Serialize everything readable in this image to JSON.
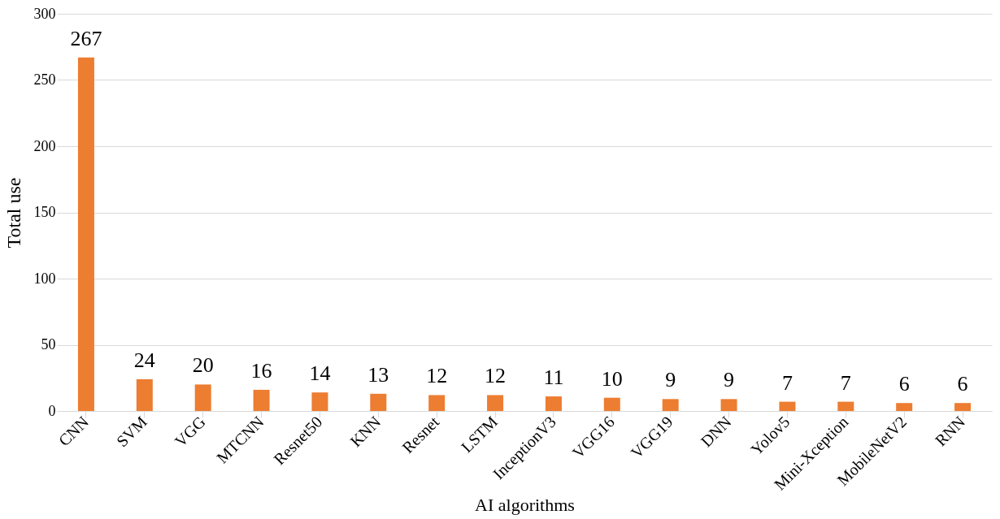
{
  "chart_data": {
    "type": "bar",
    "xlabel": "AI algorithms",
    "ylabel": "Total use",
    "categories": [
      "CNN",
      "SVM",
      "VGG",
      "MTCNN",
      "Resnet50",
      "KNN",
      "Resnet",
      "LSTM",
      "InceptionV3",
      "VGG16",
      "VGG19",
      "DNN",
      "Yolov5",
      "Mini-Xception",
      "MobileNetV2",
      "RNN"
    ],
    "values": [
      267,
      24,
      20,
      16,
      14,
      13,
      12,
      12,
      11,
      10,
      9,
      9,
      7,
      7,
      6,
      6
    ],
    "color": "#ed7d31",
    "ylim": [
      0,
      300
    ],
    "yticks": [
      0,
      50,
      100,
      150,
      200,
      250,
      300
    ],
    "grid": "y",
    "data_labels": true
  }
}
